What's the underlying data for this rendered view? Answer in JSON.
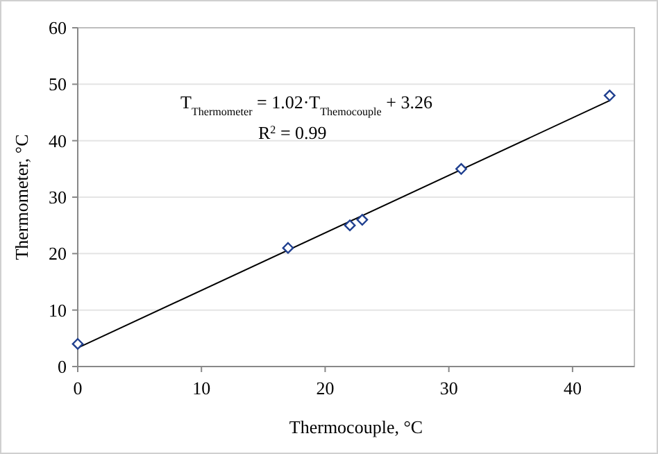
{
  "chart_data": {
    "type": "scatter",
    "xlabel": "Thermocouple, °C",
    "ylabel": "Thermometer, °C",
    "xlim": [
      0,
      45
    ],
    "xticks": [
      0,
      10,
      20,
      30,
      40
    ],
    "ylim": [
      0,
      60
    ],
    "yticks": [
      0,
      10,
      20,
      30,
      40,
      50,
      60
    ],
    "grid": "y",
    "marker": "diamond",
    "series": [
      {
        "color": "#1f3f8f",
        "x": [
          0,
          17,
          22,
          23,
          31,
          43
        ],
        "values": [
          4,
          21,
          25,
          26,
          35,
          48
        ]
      },
      {
        "type": "line",
        "color": "#000000",
        "x": [
          0,
          43
        ],
        "values": [
          3.3,
          47.1
        ],
        "marker": "none",
        "line_style": "solid"
      }
    ],
    "annotations": [
      "T$_{Thermometer}$ = 1.02·T$_{Themocouple}$ + 3.26",
      "R$^{2}$ = 0.99"
    ]
  }
}
